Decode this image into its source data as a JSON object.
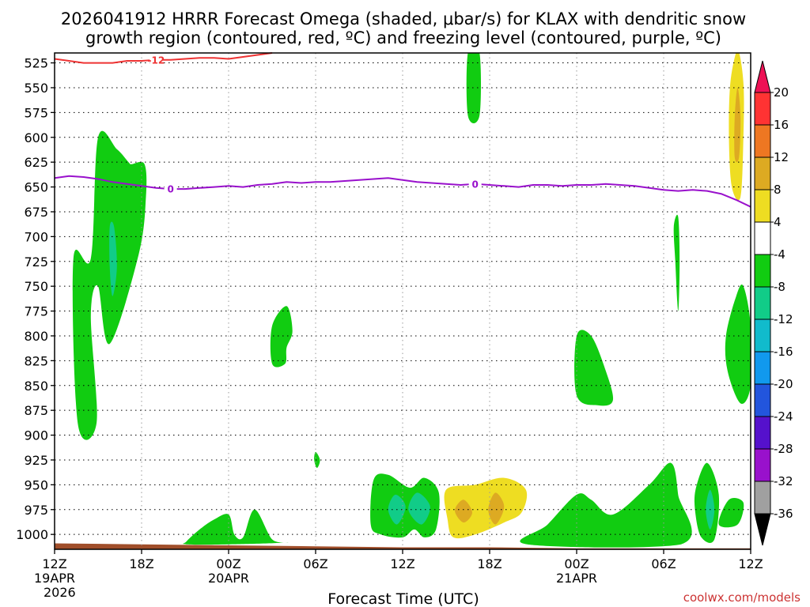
{
  "chart_data": {
    "type": "heatmap",
    "title_line1": "2026041912 HRRR Forecast Omega (shaded, μbar/s) for KLAX with dendritic snow",
    "title_line2": "growth region (contoured, red, ºC) and freezing level (contoured, purple, ºC)",
    "xlabel": "Forecast Time (UTC)",
    "credit": "coolwx.com/models",
    "x_range_hours": [
      0,
      48
    ],
    "y_range_hPa": [
      1015,
      515
    ],
    "y_ticks": [
      525,
      550,
      575,
      600,
      625,
      650,
      675,
      700,
      725,
      750,
      775,
      800,
      825,
      850,
      875,
      900,
      925,
      950,
      975,
      1000
    ],
    "x_ticks": [
      {
        "h": 0,
        "label": "12Z",
        "line2": "19APR",
        "line3": "2026"
      },
      {
        "h": 6,
        "label": "18Z"
      },
      {
        "h": 12,
        "label": "00Z",
        "line2": "20APR"
      },
      {
        "h": 18,
        "label": "06Z"
      },
      {
        "h": 24,
        "label": "12Z"
      },
      {
        "h": 30,
        "label": "18Z"
      },
      {
        "h": 36,
        "label": "00Z",
        "line2": "21APR"
      },
      {
        "h": 42,
        "label": "06Z"
      },
      {
        "h": 48,
        "label": "12Z"
      }
    ],
    "grid": true,
    "colorbar": {
      "levels": [
        20,
        16,
        12,
        8,
        4,
        -4,
        -8,
        -12,
        -16,
        -20,
        -24,
        -28,
        -32,
        -36
      ],
      "colors": [
        "#ee1155",
        "#ff3333",
        "#ee7722",
        "#ddaa22",
        "#eedd22",
        "#ffffff",
        "#11cc11",
        "#11cc88",
        "#11bbcc",
        "#1199ee",
        "#2255dd",
        "#5511cc",
        "#9911cc",
        "#a0a0a0",
        "#000000"
      ]
    },
    "freezing_level": {
      "label": "0",
      "color": "#9911cc",
      "x": [
        0,
        1,
        2,
        3,
        4,
        5,
        6,
        7,
        8,
        9,
        10,
        11,
        12,
        13,
        14,
        15,
        16,
        17,
        18,
        19,
        20,
        21,
        22,
        23,
        24,
        25,
        26,
        27,
        28,
        29,
        30,
        31,
        32,
        33,
        34,
        35,
        36,
        37,
        38,
        39,
        40,
        41,
        42,
        43,
        44,
        45,
        46,
        47,
        48
      ],
      "y": [
        641,
        639,
        640,
        642,
        645,
        647,
        649,
        651,
        652,
        652,
        651,
        650,
        649,
        650,
        648,
        647,
        645,
        646,
        645,
        645,
        644,
        643,
        642,
        641,
        643,
        645,
        646,
        647,
        648,
        647,
        648,
        649,
        650,
        648,
        648,
        649,
        648,
        648,
        647,
        648,
        649,
        651,
        653,
        654,
        653,
        654,
        657,
        663,
        670
      ]
    },
    "dendritic_region": {
      "label": "-12",
      "color": "#ee3333",
      "x": [
        0,
        1,
        2,
        3,
        4,
        5,
        6,
        7,
        8,
        9,
        10,
        11,
        12,
        13,
        14,
        15
      ],
      "y": [
        521,
        523,
        525,
        525,
        525,
        523,
        523,
        522,
        522,
        521,
        520,
        520,
        521,
        519,
        517,
        514
      ]
    },
    "shaded_areas": [
      {
        "name": "green-area-1",
        "level": -4,
        "points": [
          [
            1.3,
            722
          ],
          [
            1.6,
            888
          ],
          [
            2.9,
            887
          ],
          [
            2.5,
            780
          ],
          [
            3,
            750
          ],
          [
            3.8,
            808
          ],
          [
            5.8,
            718
          ],
          [
            6.3,
            660
          ],
          [
            6.2,
            627
          ],
          [
            5.3,
            627
          ],
          [
            5.1,
            625
          ],
          [
            4.3,
            612
          ],
          [
            3,
            600
          ],
          [
            2.5,
            722
          ]
        ]
      },
      {
        "name": "teal-area-1",
        "level": -8,
        "points": [
          [
            3.8,
            690
          ],
          [
            4.1,
            690
          ],
          [
            4.3,
            730
          ],
          [
            4,
            760
          ],
          [
            3.8,
            730
          ]
        ]
      },
      {
        "name": "green-area-2",
        "level": -4,
        "points": [
          [
            15,
            790
          ],
          [
            16,
            770
          ],
          [
            16.4,
            795
          ],
          [
            16,
            812
          ],
          [
            15.9,
            828
          ],
          [
            15,
            828
          ]
        ]
      },
      {
        "name": "green-area-3",
        "level": -4,
        "points": [
          [
            18,
            917
          ],
          [
            18.3,
            925
          ],
          [
            18.1,
            933
          ],
          [
            17.9,
            925
          ]
        ]
      },
      {
        "name": "green-area-4",
        "level": -4,
        "points": [
          [
            28.5,
            515
          ],
          [
            29.3,
            515
          ],
          [
            29.3,
            578
          ],
          [
            28.5,
            578
          ]
        ]
      },
      {
        "name": "green-area-5",
        "level": -4,
        "points": [
          [
            9.1,
            1007
          ],
          [
            10,
            995
          ],
          [
            11,
            985
          ],
          [
            12,
            980
          ],
          [
            12.4,
            1000
          ],
          [
            13,
            1003
          ],
          [
            13.8,
            975
          ],
          [
            15,
            1005
          ],
          [
            16,
            1008
          ],
          [
            12,
            1010
          ],
          [
            9.1,
            1010
          ]
        ]
      },
      {
        "name": "green-area-6",
        "level": -4,
        "points": [
          [
            22,
            945
          ],
          [
            23,
            940
          ],
          [
            24.5,
            953
          ],
          [
            25.5,
            943
          ],
          [
            26.5,
            958
          ],
          [
            26.3,
            995
          ],
          [
            25.5,
            1003
          ],
          [
            24.8,
            995
          ],
          [
            24,
            1003
          ],
          [
            22.5,
            1000
          ],
          [
            21.8,
            990
          ]
        ]
      },
      {
        "name": "teal-area-2",
        "level": -8,
        "points": [
          [
            23,
            975
          ],
          [
            23.5,
            960
          ],
          [
            24.2,
            972
          ],
          [
            23.6,
            990
          ]
        ]
      },
      {
        "name": "teal-area-3",
        "level": -8,
        "points": [
          [
            24.4,
            975
          ],
          [
            25,
            958
          ],
          [
            25.9,
            972
          ],
          [
            25.3,
            990
          ]
        ]
      },
      {
        "name": "yellow-area-1",
        "level": 4,
        "points": [
          [
            27,
            955
          ],
          [
            29,
            950
          ],
          [
            31,
            943
          ],
          [
            32.5,
            955
          ],
          [
            32.2,
            978
          ],
          [
            31,
            988
          ],
          [
            29,
            1000
          ],
          [
            27.5,
            1003
          ],
          [
            27.1,
            985
          ]
        ]
      },
      {
        "name": "orange-area-1",
        "level": 8,
        "points": [
          [
            27.6,
            976
          ],
          [
            28.2,
            965
          ],
          [
            28.8,
            978
          ],
          [
            28.2,
            988
          ]
        ]
      },
      {
        "name": "orange-area-2",
        "level": 8,
        "points": [
          [
            29.9,
            975
          ],
          [
            30.4,
            958
          ],
          [
            31,
            972
          ],
          [
            30.4,
            990
          ]
        ]
      },
      {
        "name": "green-area-7",
        "level": -4,
        "points": [
          [
            32.6,
            1010
          ],
          [
            34,
            990
          ],
          [
            36,
            960
          ],
          [
            37,
            965
          ],
          [
            38.5,
            980
          ],
          [
            41,
            950
          ],
          [
            42.5,
            928
          ],
          [
            43,
            960
          ],
          [
            43.2,
            1010
          ]
        ]
      },
      {
        "name": "green-area-8",
        "level": -4,
        "points": [
          [
            36,
            800
          ],
          [
            37,
            800
          ],
          [
            38,
            835
          ],
          [
            38.5,
            865
          ],
          [
            37.5,
            870
          ],
          [
            36,
            860
          ]
        ]
      },
      {
        "name": "green-area-9",
        "level": -4,
        "points": [
          [
            42.7,
            690
          ],
          [
            43,
            680
          ],
          [
            43.1,
            725
          ],
          [
            43,
            775
          ],
          [
            42.8,
            725
          ]
        ]
      },
      {
        "name": "green-area-10",
        "level": -4,
        "points": [
          [
            44.2,
            955
          ],
          [
            45,
            928
          ],
          [
            45.8,
            960
          ],
          [
            45.5,
            1005
          ],
          [
            44.6,
            1003
          ],
          [
            44.2,
            980
          ]
        ]
      },
      {
        "name": "teal-area-4",
        "level": -8,
        "points": [
          [
            44.9,
            975
          ],
          [
            45.2,
            955
          ],
          [
            45.5,
            975
          ],
          [
            45.2,
            995
          ]
        ]
      },
      {
        "name": "green-area-11",
        "level": -4,
        "points": [
          [
            45.8,
            990
          ],
          [
            46.5,
            965
          ],
          [
            47.5,
            968
          ],
          [
            47.1,
            990
          ]
        ]
      },
      {
        "name": "green-area-12",
        "level": -4,
        "points": [
          [
            46.3,
            800
          ],
          [
            47,
            760
          ],
          [
            47.5,
            750
          ],
          [
            48,
            790
          ],
          [
            48,
            850
          ],
          [
            47.3,
            868
          ],
          [
            46.4,
            835
          ]
        ]
      },
      {
        "name": "yellow-area-2",
        "level": 4,
        "points": [
          [
            46.7,
            650
          ],
          [
            46.5,
            600
          ],
          [
            46.6,
            545
          ],
          [
            47.1,
            510
          ],
          [
            47.5,
            545
          ],
          [
            47.5,
            600
          ],
          [
            47.3,
            660
          ]
        ]
      },
      {
        "name": "orange-area-3",
        "level": 8,
        "points": [
          [
            46.9,
            620
          ],
          [
            46.9,
            580
          ],
          [
            47.1,
            550
          ],
          [
            47.3,
            580
          ],
          [
            47.2,
            620
          ]
        ]
      }
    ],
    "ground": {
      "color": "#a04e2a",
      "x": [
        0,
        6,
        12,
        18,
        24,
        30,
        36,
        42,
        48
      ],
      "y": [
        1009,
        1010,
        1011,
        1012,
        1013,
        1013,
        1014,
        1014,
        1014
      ]
    }
  }
}
